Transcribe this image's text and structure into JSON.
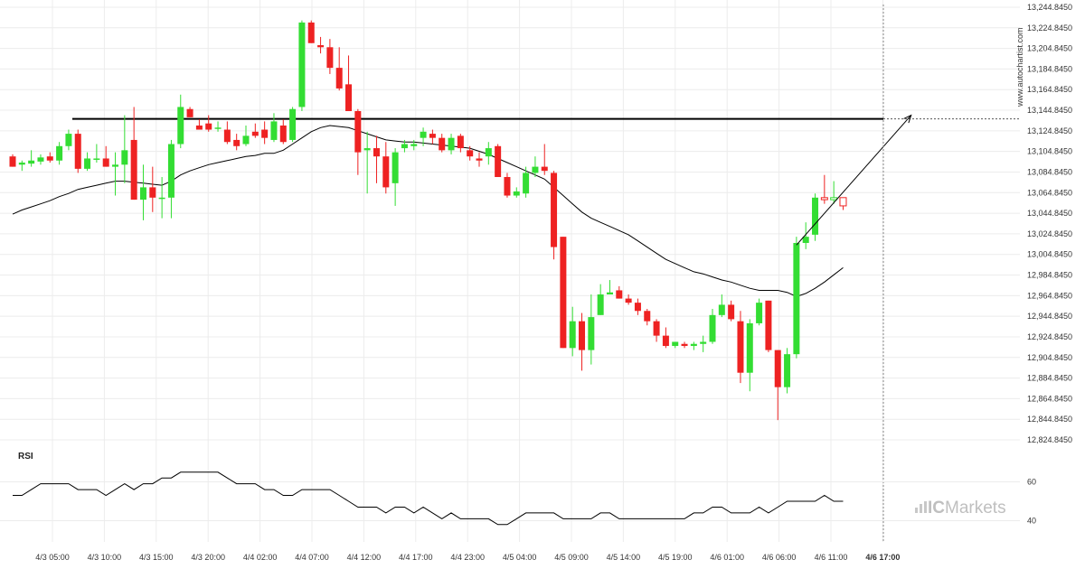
{
  "watermark": "www.autochartist.com",
  "brand": {
    "prefix": "IC",
    "suffix": "Markets"
  },
  "colors": {
    "up": "#33dd33",
    "down": "#ee2222",
    "line": "#000000",
    "projection": "#000000",
    "grid": "#ececec"
  },
  "chart_data": {
    "type": "candlestick",
    "instrument": "",
    "price_axis": {
      "min": 12824.845,
      "max": 13244.845,
      "ticks": [
        "13,244.8450",
        "13,224.8450",
        "13,204.8450",
        "13,184.8450",
        "13,164.8450",
        "13,144.8450",
        "13,124.8450",
        "13,104.8450",
        "13,084.8450",
        "13,064.8450",
        "13,044.8450",
        "13,024.8450",
        "13,004.8450",
        "12,984.8450",
        "12,964.8450",
        "12,944.8450",
        "12,924.8450",
        "12,904.8450",
        "12,884.8450",
        "12,864.8450",
        "12,844.8450",
        "12,824.8450"
      ]
    },
    "time_axis": {
      "labels": [
        "4/3 05:00",
        "4/3 10:00",
        "4/3 15:00",
        "4/3 20:00",
        "4/4 02:00",
        "4/4 07:00",
        "4/4 12:00",
        "4/4 17:00",
        "4/4 23:00",
        "4/5 04:00",
        "4/5 09:00",
        "4/5 14:00",
        "4/5 19:00",
        "4/6 01:00",
        "4/6 06:00",
        "4/6 11:00",
        "4/6 17:00"
      ],
      "bold_label": "4/6 17:00"
    },
    "resistance_level": 13136.5,
    "candles": [
      [
        13100,
        13102,
        13090,
        13090
      ],
      [
        13092,
        13096,
        13086,
        13094
      ],
      [
        13093,
        13106,
        13090,
        13096
      ],
      [
        13095,
        13102,
        13092,
        13099
      ],
      [
        13100,
        13104,
        13094,
        13096
      ],
      [
        13096,
        13114,
        13092,
        13110
      ],
      [
        13110,
        13126,
        13106,
        13122
      ],
      [
        13122,
        13126,
        13084,
        13088
      ],
      [
        13088,
        13104,
        13086,
        13098
      ],
      [
        13098,
        13112,
        13094,
        13098
      ],
      [
        13098,
        13110,
        13090,
        13090
      ],
      [
        13090,
        13104,
        13062,
        13092
      ],
      [
        13092,
        13140,
        13074,
        13106
      ],
      [
        13116,
        13148,
        13058,
        13058
      ],
      [
        13058,
        13092,
        13038,
        13070
      ],
      [
        13070,
        13090,
        13046,
        13060
      ],
      [
        13060,
        13080,
        13040,
        13060
      ],
      [
        13060,
        13116,
        13040,
        13112
      ],
      [
        13112,
        13160,
        13108,
        13148
      ],
      [
        13146,
        13148,
        13138,
        13138
      ],
      [
        13130,
        13136,
        13128,
        13126
      ],
      [
        13132,
        13140,
        13124,
        13126
      ],
      [
        13128,
        13134,
        13124,
        13128
      ],
      [
        13126,
        13134,
        13112,
        13114
      ],
      [
        13116,
        13122,
        13106,
        13110
      ],
      [
        13112,
        13130,
        13110,
        13120
      ],
      [
        13124,
        13132,
        13118,
        13120
      ],
      [
        13126,
        13134,
        13112,
        13118
      ],
      [
        13116,
        13142,
        13114,
        13134
      ],
      [
        13130,
        13136,
        13112,
        13114
      ],
      [
        13116,
        13148,
        13114,
        13146
      ],
      [
        13148,
        13232,
        13144,
        13230
      ],
      [
        13230,
        13232,
        13210,
        13210
      ],
      [
        13208,
        13216,
        13200,
        13206
      ],
      [
        13206,
        13214,
        13180,
        13186
      ],
      [
        13186,
        13206,
        13164,
        13166
      ],
      [
        13170,
        13198,
        13144,
        13144
      ],
      [
        13144,
        13146,
        13082,
        13104
      ],
      [
        13106,
        13124,
        13064,
        13108
      ],
      [
        13108,
        13120,
        13074,
        13100
      ],
      [
        13100,
        13114,
        13064,
        13070
      ],
      [
        13074,
        13108,
        13052,
        13104
      ],
      [
        13108,
        13116,
        13104,
        13112
      ],
      [
        13110,
        13116,
        13106,
        13112
      ],
      [
        13118,
        13128,
        13110,
        13124
      ],
      [
        13122,
        13126,
        13112,
        13118
      ],
      [
        13118,
        13122,
        13104,
        13106
      ],
      [
        13106,
        13122,
        13102,
        13118
      ],
      [
        13120,
        13122,
        13104,
        13108
      ],
      [
        13106,
        13110,
        13096,
        13100
      ],
      [
        13098,
        13104,
        13090,
        13096
      ],
      [
        13100,
        13114,
        13092,
        13108
      ],
      [
        13110,
        13112,
        13080,
        13080
      ],
      [
        13080,
        13084,
        13060,
        13062
      ],
      [
        13062,
        13070,
        13060,
        13066
      ],
      [
        13064,
        13090,
        13060,
        13084
      ],
      [
        13084,
        13100,
        13080,
        13090
      ],
      [
        13090,
        13112,
        13082,
        13086
      ],
      [
        13084,
        13086,
        13000,
        13012
      ],
      [
        13022,
        13022,
        12914,
        12914
      ],
      [
        12914,
        12954,
        12906,
        12940
      ],
      [
        12940,
        12948,
        12892,
        12912
      ],
      [
        12912,
        12966,
        12898,
        12944
      ],
      [
        12946,
        12976,
        12946,
        12966
      ],
      [
        12966,
        12980,
        12966,
        12968
      ],
      [
        12970,
        12974,
        12962,
        12962
      ],
      [
        12962,
        12966,
        12956,
        12958
      ],
      [
        12958,
        12962,
        12946,
        12950
      ],
      [
        12950,
        12952,
        12936,
        12940
      ],
      [
        12940,
        12942,
        12920,
        12926
      ],
      [
        12926,
        12934,
        12914,
        12916
      ],
      [
        12916,
        12920,
        12914,
        12920
      ],
      [
        12918,
        12920,
        12914,
        12916
      ],
      [
        12916,
        12920,
        12912,
        12918
      ],
      [
        12918,
        12926,
        12910,
        12920
      ],
      [
        12920,
        12952,
        12918,
        12946
      ],
      [
        12946,
        12966,
        12944,
        12956
      ],
      [
        12956,
        12960,
        12940,
        12942
      ],
      [
        12940,
        12950,
        12880,
        12890
      ],
      [
        12890,
        12942,
        12872,
        12938
      ],
      [
        12938,
        12962,
        12936,
        12958
      ],
      [
        12960,
        12960,
        12910,
        12912
      ],
      [
        12912,
        12912,
        12844,
        12876
      ],
      [
        12876,
        12914,
        12870,
        12908
      ],
      [
        12908,
        13022,
        12904,
        13016
      ],
      [
        13016,
        13036,
        13010,
        13022
      ],
      [
        13024,
        13064,
        13018,
        13060
      ],
      [
        13060,
        13082,
        13054,
        13058
      ],
      [
        13058,
        13076,
        13054,
        13060
      ],
      [
        13060,
        13060,
        13048,
        13052
      ]
    ],
    "moving_average": [
      [
        0,
        13044
      ],
      [
        1,
        13048
      ],
      [
        2,
        13051
      ],
      [
        3,
        13054
      ],
      [
        4,
        13057
      ],
      [
        5,
        13061
      ],
      [
        6,
        13064
      ],
      [
        7,
        13068
      ],
      [
        8,
        13070
      ],
      [
        9,
        13072
      ],
      [
        10,
        13074
      ],
      [
        11,
        13076
      ],
      [
        12,
        13076
      ],
      [
        13,
        13075
      ],
      [
        14,
        13074
      ],
      [
        15,
        13073
      ],
      [
        16,
        13072
      ],
      [
        17,
        13076
      ],
      [
        18,
        13082
      ],
      [
        19,
        13086
      ],
      [
        20,
        13089
      ],
      [
        21,
        13092
      ],
      [
        22,
        13094
      ],
      [
        23,
        13096
      ],
      [
        24,
        13098
      ],
      [
        25,
        13100
      ],
      [
        26,
        13101
      ],
      [
        27,
        13103
      ],
      [
        28,
        13103
      ],
      [
        29,
        13106
      ],
      [
        30,
        13112
      ],
      [
        31,
        13118
      ],
      [
        32,
        13124
      ],
      [
        33,
        13128
      ],
      [
        34,
        13130
      ],
      [
        35,
        13129
      ],
      [
        36,
        13128
      ],
      [
        37,
        13125
      ],
      [
        38,
        13122
      ],
      [
        39,
        13119
      ],
      [
        40,
        13116
      ],
      [
        41,
        13115
      ],
      [
        42,
        13114
      ],
      [
        43,
        13114
      ],
      [
        44,
        13113
      ],
      [
        45,
        13112
      ],
      [
        46,
        13111
      ],
      [
        47,
        13110
      ],
      [
        48,
        13109
      ],
      [
        49,
        13108
      ],
      [
        50,
        13105
      ],
      [
        51,
        13102
      ],
      [
        52,
        13098
      ],
      [
        53,
        13094
      ],
      [
        54,
        13090
      ],
      [
        55,
        13086
      ],
      [
        56,
        13082
      ],
      [
        57,
        13078
      ],
      [
        58,
        13070
      ],
      [
        59,
        13062
      ],
      [
        60,
        13054
      ],
      [
        61,
        13046
      ],
      [
        62,
        13040
      ],
      [
        63,
        13036
      ],
      [
        64,
        13032
      ],
      [
        65,
        13028
      ],
      [
        66,
        13024
      ],
      [
        67,
        13018
      ],
      [
        68,
        13012
      ],
      [
        69,
        13006
      ],
      [
        70,
        13000
      ],
      [
        71,
        12996
      ],
      [
        72,
        12992
      ],
      [
        73,
        12988
      ],
      [
        74,
        12986
      ],
      [
        75,
        12983
      ],
      [
        76,
        12980
      ],
      [
        77,
        12978
      ],
      [
        78,
        12975
      ],
      [
        79,
        12972
      ],
      [
        80,
        12970
      ],
      [
        81,
        12970
      ],
      [
        82,
        12970
      ],
      [
        83,
        12968
      ],
      [
        84,
        12964
      ],
      [
        85,
        12967
      ],
      [
        86,
        12972
      ],
      [
        87,
        12978
      ],
      [
        88,
        12985
      ],
      [
        89,
        12992
      ]
    ],
    "projection": {
      "from": [
        84,
        13014
      ],
      "to": [
        96,
        13140
      ]
    },
    "rsi": {
      "title": "RSI",
      "levels": [
        60,
        40
      ],
      "range": [
        30,
        70
      ],
      "values": [
        53,
        53,
        56,
        59,
        59,
        59,
        59,
        56,
        56,
        56,
        53,
        56,
        59,
        56,
        59,
        59,
        62,
        62,
        65,
        65,
        65,
        65,
        65,
        62,
        59,
        59,
        59,
        56,
        56,
        53,
        53,
        56,
        56,
        56,
        56,
        53,
        50,
        47,
        47,
        47,
        44,
        47,
        47,
        44,
        47,
        44,
        41,
        44,
        41,
        41,
        41,
        41,
        38,
        38,
        41,
        44,
        44,
        44,
        44,
        41,
        41,
        41,
        41,
        44,
        44,
        41,
        41,
        41,
        41,
        41,
        41,
        41,
        41,
        44,
        44,
        47,
        47,
        44,
        44,
        44,
        47,
        44,
        47,
        50,
        50,
        50,
        50,
        53,
        50,
        50
      ]
    }
  }
}
